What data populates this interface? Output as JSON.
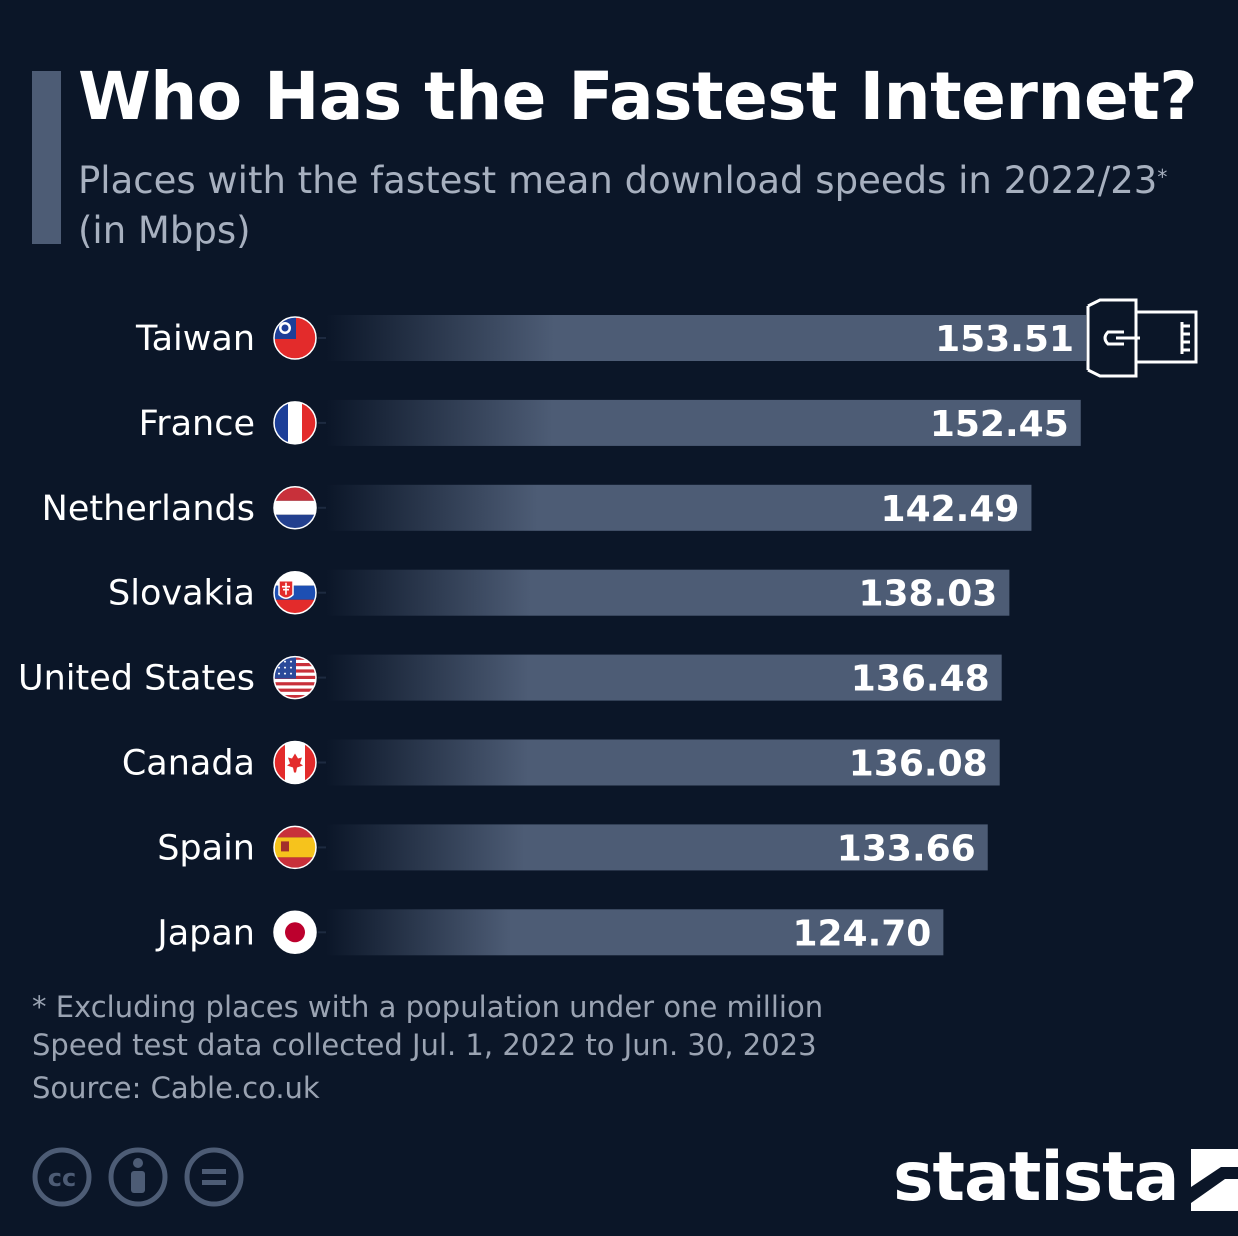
{
  "header": {
    "title": "Who Has the Fastest Internet?",
    "subtitle": "Places with the fastest mean download speeds in 2022/23",
    "subtitle_marker": "*",
    "subtitle_unit": "(in Mbps)"
  },
  "footer": {
    "note": "* Excluding places with a population under one million",
    "collection": "Speed test data collected Jul. 1, 2022 to Jun. 30, 2023",
    "source": "Source: Cable.co.uk",
    "brand": "statista"
  },
  "colors": {
    "background": "#0b1628",
    "bar": "#4d5c75",
    "accent": "#4d5c75"
  },
  "icons": {
    "license": [
      "creative-commons-icon",
      "attribution-icon",
      "no-derivatives-icon"
    ],
    "bar_decoration": "ethernet-cable-icon"
  },
  "chart_data": {
    "type": "bar",
    "orientation": "horizontal",
    "categories": [
      "Taiwan",
      "France",
      "Netherlands",
      "Slovakia",
      "United States",
      "Canada",
      "Spain",
      "Japan"
    ],
    "values": [
      153.51,
      152.45,
      142.49,
      138.03,
      136.48,
      136.08,
      133.66,
      124.7
    ],
    "value_labels": [
      "153.51",
      "152.45",
      "142.49",
      "138.03",
      "136.48",
      "136.08",
      "133.66",
      "124.70"
    ],
    "flags": [
      "taiwan-flag-icon",
      "france-flag-icon",
      "netherlands-flag-icon",
      "slovakia-flag-icon",
      "united-states-flag-icon",
      "canada-flag-icon",
      "spain-flag-icon",
      "japan-flag-icon"
    ],
    "xlim": [
      0,
      153.51
    ],
    "grid": false,
    "legend": "none"
  }
}
